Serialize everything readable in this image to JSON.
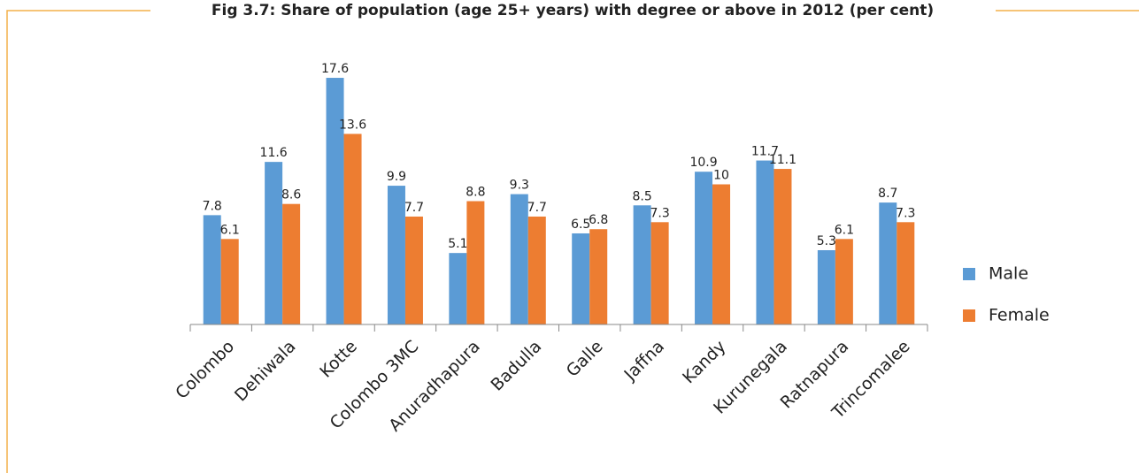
{
  "chart_data": {
    "type": "bar",
    "title": "Fig 3.7: Share of population (age 25+ years) with degree or above in 2012 (per cent)",
    "categories": [
      "Colombo",
      "Dehiwala",
      "Kotte",
      "Colombo 3MC",
      "Anuradhapura",
      "Badulla",
      "Galle",
      "Jaffna",
      "Kandy",
      "Kurunegala",
      "Ratnapura",
      "Trincomalee"
    ],
    "series": [
      {
        "name": "Male",
        "color": "#5b9bd5",
        "values": [
          7.8,
          11.6,
          17.6,
          9.9,
          5.1,
          9.3,
          6.5,
          8.5,
          10.9,
          11.7,
          5.3,
          8.7
        ]
      },
      {
        "name": "Female",
        "color": "#ed7d31",
        "values": [
          6.1,
          8.6,
          13.6,
          7.7,
          8.8,
          7.7,
          6.8,
          7.3,
          10,
          11.1,
          6.1,
          7.3
        ]
      }
    ],
    "ylim": [
      0,
      20
    ],
    "legend": "right"
  }
}
